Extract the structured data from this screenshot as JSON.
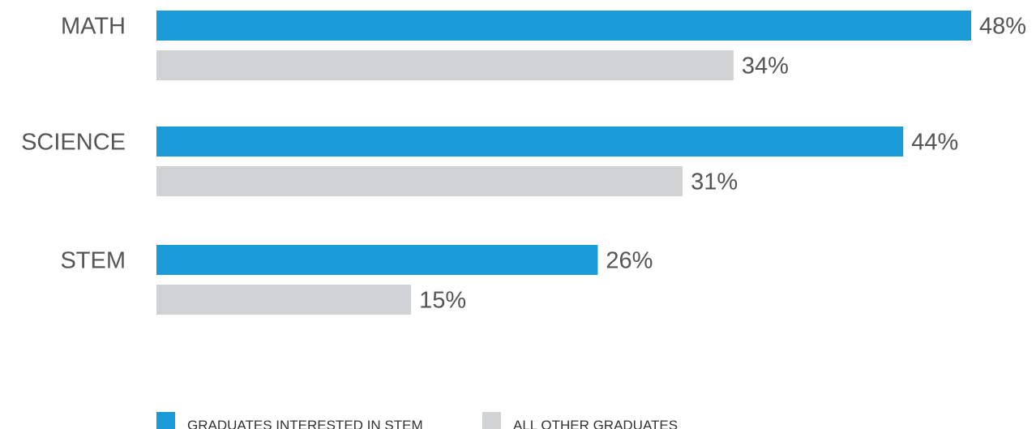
{
  "chart_data": {
    "type": "bar",
    "orientation": "horizontal",
    "categories": [
      "MATH",
      "SCIENCE",
      "STEM"
    ],
    "series": [
      {
        "name": "GRADUATES INTERESTED IN STEM",
        "values": [
          48,
          44,
          26
        ],
        "labels": [
          "48%",
          "44%",
          "26%"
        ],
        "color": "#1a9bd7"
      },
      {
        "name": "ALL OTHER GRADUATES",
        "values": [
          34,
          31,
          15
        ],
        "labels": [
          "34%",
          "31%",
          "15%"
        ],
        "color": "#d1d2d4"
      }
    ],
    "xlim": [
      0,
      48
    ],
    "grid": false,
    "legend": "bottom"
  }
}
